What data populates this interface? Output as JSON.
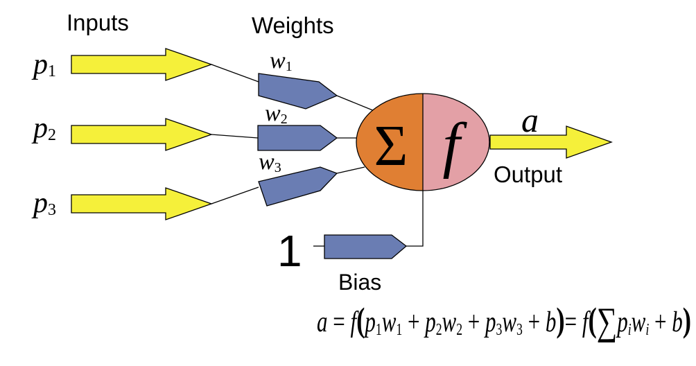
{
  "headings": {
    "inputs": "Inputs",
    "weights": "Weights",
    "output": "Output",
    "bias": "Bias"
  },
  "inputs": [
    {
      "symbol": "p",
      "sub": "1"
    },
    {
      "symbol": "p",
      "sub": "2"
    },
    {
      "symbol": "p",
      "sub": "3"
    }
  ],
  "weights": [
    {
      "symbol": "w",
      "sub": "1"
    },
    {
      "symbol": "w",
      "sub": "2"
    },
    {
      "symbol": "w",
      "sub": "3"
    }
  ],
  "neuron": {
    "sum_symbol": "Σ",
    "activation_symbol": "f"
  },
  "output_symbol": "a",
  "bias_value": "1",
  "formula": {
    "a": "a",
    "eq1": " = ",
    "f1": "f",
    "open1": "(",
    "p1": "p",
    "p1s": "1",
    "w1": "w",
    "w1s": "1",
    "plus1": " + ",
    "p2": "p",
    "p2s": "2",
    "w2": "w",
    "w2s": "2",
    "plus2": " + ",
    "p3": "p",
    "p3s": "3",
    "w3": "w",
    "w3s": "3",
    "plus3": " + ",
    "b1": "b",
    "close1": ")",
    "eq2": "= ",
    "f2": "f",
    "open2": "(",
    "sigma": "∑",
    "pi": "p",
    "pis": "i",
    "wi": "w",
    "wis": "i",
    "plus4": " + ",
    "b2": "b",
    "close2": ")"
  },
  "colors": {
    "input_arrow": "#f5f03a",
    "weight_block": "#6a7db3",
    "sum_half": "#e07f33",
    "activation_half": "#e3a0a6",
    "line": "#000000"
  }
}
